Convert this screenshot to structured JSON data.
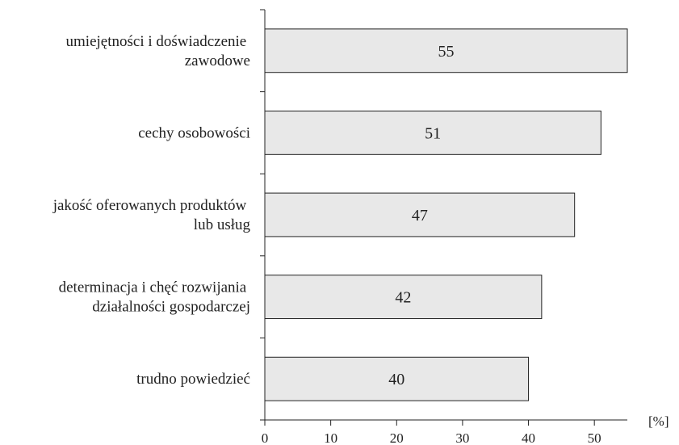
{
  "chart_data": {
    "type": "barh",
    "categories": [
      "umiejętności i doświadczenie\nzawodowe",
      "cechy osobowości",
      "jakość oferowanych produktów\nlub usług",
      "determinacja i chęć rozwijania\ndziałalności gospodarczej",
      "trudno powiedzieć"
    ],
    "values": [
      55,
      51,
      47,
      42,
      40
    ],
    "color": "#e8e8e8",
    "xlim": [
      0,
      55
    ],
    "xticks": [
      0,
      10,
      20,
      30,
      40,
      50
    ],
    "xlabel": "[%]"
  }
}
